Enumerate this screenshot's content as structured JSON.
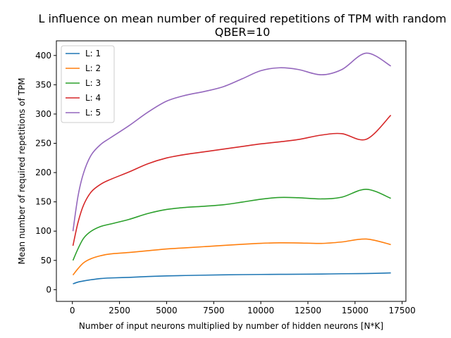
{
  "chart_data": {
    "type": "line",
    "title": "L influence on mean number of required repetitions of TPM with random\nQBER=10",
    "xlabel": "Number of input neurons multiplied by number of hidden neurons [N*K]",
    "ylabel": "Mean number of required repetitions of TPM",
    "xlim": [
      -850,
      17700
    ],
    "ylim": [
      -20,
      425
    ],
    "xticks": [
      0,
      2500,
      5000,
      7500,
      10000,
      12500,
      15000,
      17500
    ],
    "xtick_labels": [
      "0",
      "2500",
      "5000",
      "7500",
      "10000",
      "12500",
      "15000",
      "17500"
    ],
    "yticks": [
      0,
      50,
      100,
      150,
      200,
      250,
      300,
      350,
      400
    ],
    "ytick_labels": [
      "0",
      "50",
      "100",
      "150",
      "200",
      "250",
      "300",
      "350",
      "400"
    ],
    "grid": false,
    "legend_position": "top-left",
    "x": [
      30,
      300,
      600,
      1000,
      1500,
      2000,
      3000,
      4000,
      5000,
      6000,
      7000,
      8000,
      9000,
      10000,
      11000,
      12000,
      13200,
      14300,
      15600,
      16900
    ],
    "series": [
      {
        "name": "L: 1",
        "color": "#1f77b4",
        "values": [
          10,
          13,
          15,
          17,
          19,
          20,
          21,
          22.5,
          23.5,
          24.2,
          24.8,
          25.3,
          25.7,
          26,
          26.2,
          26.4,
          26.7,
          27.2,
          27.6,
          28.6
        ]
      },
      {
        "name": "L: 2",
        "color": "#ff7f0e",
        "values": [
          25,
          36,
          46,
          53,
          58,
          61,
          63.5,
          66.5,
          69.5,
          71.5,
          73.5,
          75.5,
          77.5,
          79.2,
          80,
          79.8,
          79,
          81.5,
          86.5,
          77
        ]
      },
      {
        "name": "L: 3",
        "color": "#2ca02c",
        "values": [
          50,
          70,
          88,
          100,
          108,
          112,
          120,
          130,
          137,
          140.5,
          142.5,
          145,
          149.5,
          154.5,
          157.5,
          157,
          155,
          158,
          171.5,
          156
        ]
      },
      {
        "name": "L: 4",
        "color": "#d62728",
        "values": [
          75,
          115,
          145,
          167,
          180,
          188,
          201,
          215,
          225,
          231,
          235.5,
          240,
          244.5,
          249,
          252.5,
          256.5,
          264,
          266.5,
          257,
          298
        ]
      },
      {
        "name": "L: 5",
        "color": "#9467bd",
        "values": [
          100,
          160,
          200,
          230,
          248,
          259,
          280,
          303,
          322,
          332,
          338.5,
          346.5,
          360,
          374,
          379,
          376,
          367,
          376,
          404,
          382
        ]
      }
    ]
  }
}
